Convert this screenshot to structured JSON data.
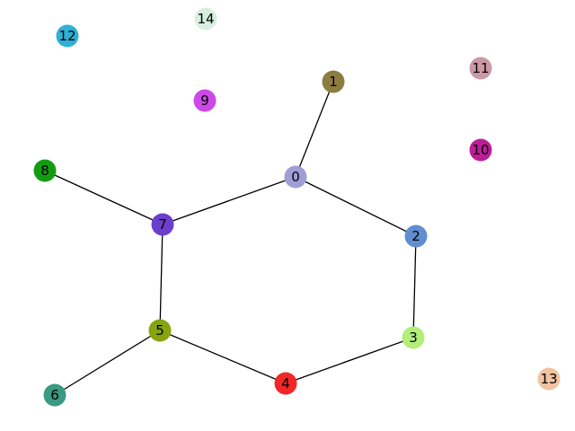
{
  "nodes": [
    {
      "id": "0",
      "label": "0",
      "color": "#9f9fd6"
    },
    {
      "id": "1",
      "label": "1",
      "color": "#8b7d3f"
    },
    {
      "id": "2",
      "label": "2",
      "color": "#5f8ed1"
    },
    {
      "id": "3",
      "label": "3",
      "color": "#b2ee79"
    },
    {
      "id": "4",
      "label": "4",
      "color": "#f32727"
    },
    {
      "id": "5",
      "label": "5",
      "color": "#88a310"
    },
    {
      "id": "6",
      "label": "6",
      "color": "#3a9982"
    },
    {
      "id": "7",
      "label": "7",
      "color": "#6b3fcb"
    },
    {
      "id": "8",
      "label": "8",
      "color": "#139c13"
    },
    {
      "id": "9",
      "label": "9",
      "color": "#cc49e7"
    },
    {
      "id": "10",
      "label": "10",
      "color": "#bc1e97"
    },
    {
      "id": "11",
      "label": "11",
      "color": "#cc98a6"
    },
    {
      "id": "12",
      "label": "12",
      "color": "#2fb0d5"
    },
    {
      "id": "13",
      "label": "13",
      "color": "#f1c3a0"
    },
    {
      "id": "14",
      "label": "14",
      "color": "#d7efe0"
    }
  ],
  "edges": [
    [
      "0",
      "1"
    ],
    [
      "0",
      "2"
    ],
    [
      "0",
      "7"
    ],
    [
      "2",
      "3"
    ],
    [
      "3",
      "4"
    ],
    [
      "4",
      "5"
    ],
    [
      "5",
      "6"
    ],
    [
      "5",
      "7"
    ],
    [
      "7",
      "8"
    ]
  ]
}
